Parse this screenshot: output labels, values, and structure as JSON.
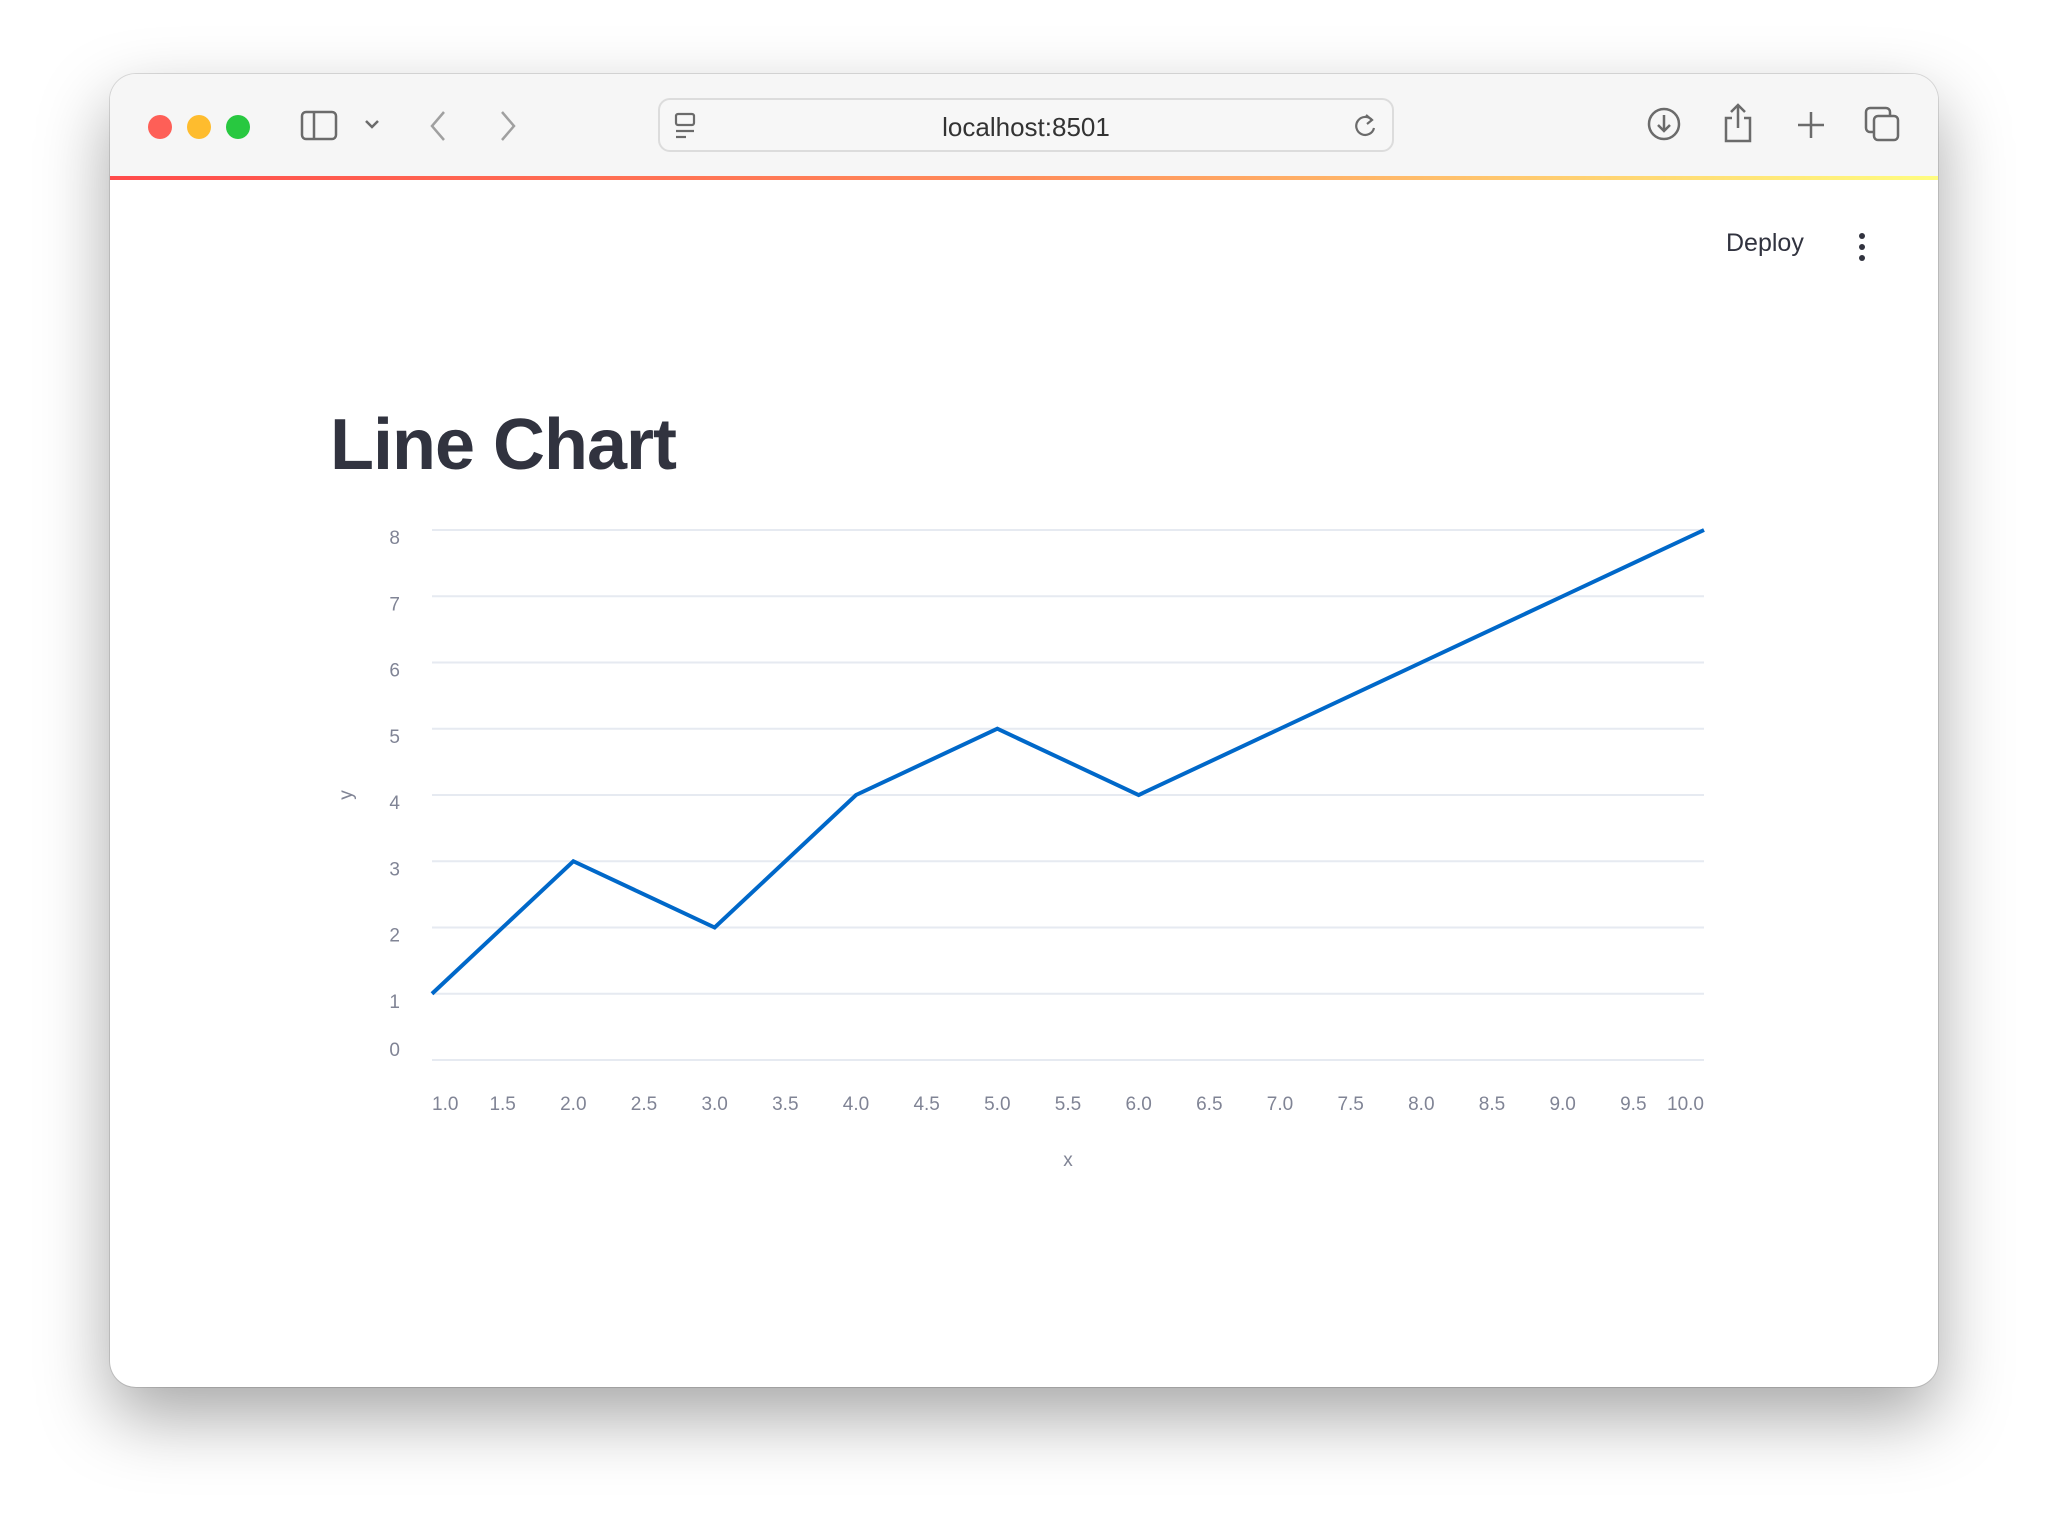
{
  "browser": {
    "url": "localhost:8501"
  },
  "header": {
    "deploy_label": "Deploy"
  },
  "main": {
    "title": "Line Chart"
  },
  "colors": {
    "line": "#0068c9",
    "grid": "#e6eaf1",
    "accent_start": "#ff4b4b",
    "accent_end": "#fffd80"
  },
  "chart_data": {
    "type": "line",
    "x": [
      1,
      2,
      3,
      4,
      5,
      6,
      7,
      8,
      9,
      10
    ],
    "series": [
      {
        "values": [
          1,
          3,
          2,
          4,
          5,
          4,
          5,
          6,
          7,
          8
        ]
      }
    ],
    "xlabel": "x",
    "ylabel": "y",
    "xlim": [
      1,
      10
    ],
    "ylim": [
      0,
      8
    ],
    "xticks": [
      "1.0",
      "1.5",
      "2.0",
      "2.5",
      "3.0",
      "3.5",
      "4.0",
      "4.5",
      "5.0",
      "5.5",
      "6.0",
      "6.5",
      "7.0",
      "7.5",
      "8.0",
      "8.5",
      "9.0",
      "9.5",
      "10.0"
    ],
    "yticks": [
      "0",
      "1",
      "2",
      "3",
      "4",
      "5",
      "6",
      "7",
      "8"
    ],
    "grid": true,
    "legend": "none"
  }
}
